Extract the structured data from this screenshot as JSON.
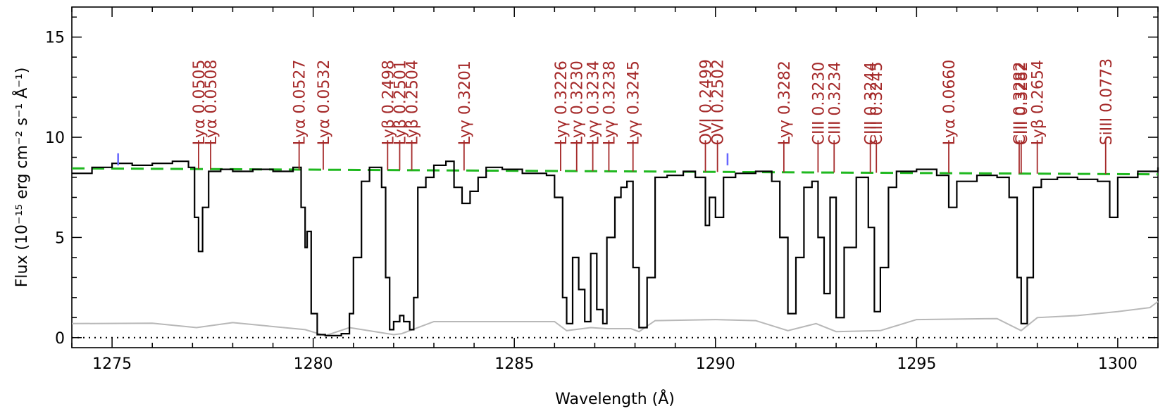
{
  "chart_data": {
    "type": "line",
    "xlabel": "Wavelength (Å)",
    "ylabel": "Flux (10⁻¹⁵ erg cm⁻² s⁻¹ Å⁻¹)",
    "xlim": [
      1274,
      1301
    ],
    "ylim": [
      -0.5,
      16.5
    ],
    "x_ticks": [
      1275,
      1280,
      1285,
      1290,
      1295,
      1300
    ],
    "y_ticks": [
      0,
      5,
      10,
      15
    ],
    "grid": false,
    "colors": {
      "flux": "#000000",
      "error": "#b8b8b8",
      "continuum": "#1fb81f",
      "labels": "#a52a2a",
      "markers": "#6666ff",
      "zero": "#000000"
    },
    "series": [
      {
        "role": "flux",
        "x": [
          1274.0,
          1274.5,
          1275.0,
          1275.5,
          1276.0,
          1276.5,
          1276.9,
          1277.05,
          1277.15,
          1277.25,
          1277.4,
          1277.7,
          1278.0,
          1278.5,
          1279.0,
          1279.5,
          1279.7,
          1279.8,
          1279.85,
          1279.95,
          1280.1,
          1280.3,
          1280.5,
          1280.7,
          1280.9,
          1281.0,
          1281.2,
          1281.4,
          1281.7,
          1281.8,
          1281.9,
          1282.0,
          1282.15,
          1282.25,
          1282.4,
          1282.5,
          1282.6,
          1282.8,
          1283.0,
          1283.3,
          1283.5,
          1283.7,
          1283.9,
          1284.1,
          1284.3,
          1284.7,
          1285.2,
          1285.8,
          1286.0,
          1286.2,
          1286.3,
          1286.45,
          1286.6,
          1286.75,
          1286.9,
          1287.05,
          1287.2,
          1287.3,
          1287.5,
          1287.65,
          1287.8,
          1287.95,
          1288.1,
          1288.3,
          1288.5,
          1288.8,
          1289.2,
          1289.5,
          1289.75,
          1289.85,
          1290.0,
          1290.2,
          1290.5,
          1291.0,
          1291.4,
          1291.6,
          1291.8,
          1292.0,
          1292.2,
          1292.4,
          1292.55,
          1292.7,
          1292.85,
          1293.0,
          1293.2,
          1293.5,
          1293.8,
          1293.95,
          1294.1,
          1294.3,
          1294.5,
          1295.0,
          1295.5,
          1295.8,
          1296.0,
          1296.5,
          1297.0,
          1297.3,
          1297.5,
          1297.6,
          1297.75,
          1297.9,
          1298.1,
          1298.5,
          1299.0,
          1299.5,
          1299.8,
          1300.0,
          1300.5,
          1301.0
        ],
        "y": [
          8.2,
          8.5,
          8.7,
          8.6,
          8.7,
          8.8,
          8.5,
          6.0,
          4.3,
          6.5,
          8.3,
          8.4,
          8.3,
          8.4,
          8.3,
          8.5,
          6.5,
          4.5,
          5.3,
          1.2,
          0.15,
          0.1,
          0.1,
          0.2,
          1.2,
          4.0,
          7.8,
          8.5,
          7.5,
          3.0,
          0.4,
          0.8,
          1.1,
          0.8,
          0.4,
          2.0,
          7.5,
          8.0,
          8.6,
          8.8,
          7.5,
          6.7,
          7.3,
          8.0,
          8.5,
          8.4,
          8.2,
          8.1,
          7.0,
          2.0,
          0.7,
          4.0,
          2.4,
          0.8,
          4.2,
          1.4,
          0.7,
          5.0,
          7.0,
          7.5,
          7.8,
          3.5,
          0.5,
          3.0,
          8.0,
          8.1,
          8.3,
          8.0,
          5.6,
          7.0,
          6.0,
          8.0,
          8.2,
          8.3,
          7.8,
          5.0,
          1.2,
          4.0,
          7.5,
          7.8,
          5.0,
          2.2,
          7.0,
          1.0,
          4.5,
          8.0,
          5.5,
          1.3,
          3.5,
          7.5,
          8.3,
          8.4,
          8.1,
          6.5,
          7.8,
          8.1,
          8.0,
          7.0,
          3.0,
          0.7,
          3.0,
          7.5,
          7.9,
          8.0,
          7.9,
          7.8,
          6.0,
          8.0,
          8.3,
          8.5
        ]
      },
      {
        "role": "error",
        "x": [
          1274.0,
          1276.0,
          1277.1,
          1278.0,
          1279.8,
          1280.3,
          1280.9,
          1282.0,
          1282.2,
          1283.0,
          1286.0,
          1286.3,
          1286.9,
          1287.3,
          1287.9,
          1288.1,
          1288.5,
          1290.0,
          1291.0,
          1291.8,
          1292.5,
          1293.0,
          1294.1,
          1295.0,
          1297.0,
          1297.6,
          1298.0,
          1299.0,
          1300.0,
          1300.8,
          1301.0
        ],
        "y": [
          0.7,
          0.72,
          0.5,
          0.75,
          0.4,
          0.1,
          0.5,
          0.15,
          0.2,
          0.8,
          0.8,
          0.35,
          0.5,
          0.45,
          0.45,
          0.3,
          0.85,
          0.9,
          0.85,
          0.35,
          0.7,
          0.3,
          0.35,
          0.9,
          0.95,
          0.35,
          1.0,
          1.1,
          1.3,
          1.5,
          1.8
        ]
      },
      {
        "role": "continuum",
        "x": [
          1274.0,
          1301.0
        ],
        "y": [
          8.45,
          8.15
        ]
      }
    ],
    "line_ids": [
      {
        "x": 1277.15,
        "label": "Lyα 0.0505"
      },
      {
        "x": 1277.45,
        "label": "Lyα 0.0508"
      },
      {
        "x": 1279.65,
        "label": "Lyα 0.0527"
      },
      {
        "x": 1280.25,
        "label": "Lyα 0.0532"
      },
      {
        "x": 1281.85,
        "label": "Lyβ 0.2498"
      },
      {
        "x": 1282.15,
        "label": "Lyβ 0.2501"
      },
      {
        "x": 1282.45,
        "label": "Lyβ 0.2504"
      },
      {
        "x": 1283.75,
        "label": "Lyγ 0.3201"
      },
      {
        "x": 1286.15,
        "label": "Lyγ 0.3226"
      },
      {
        "x": 1286.55,
        "label": "Lyγ 0.3230"
      },
      {
        "x": 1286.95,
        "label": "Lyγ 0.3234"
      },
      {
        "x": 1287.35,
        "label": "Lyγ 0.3238"
      },
      {
        "x": 1287.95,
        "label": "Lyγ 0.3245"
      },
      {
        "x": 1289.75,
        "label": "OVI 0.2499"
      },
      {
        "x": 1290.05,
        "label": "OVI 0.2502"
      },
      {
        "x": 1291.7,
        "label": "Lyγ 0.3282"
      },
      {
        "x": 1292.55,
        "label": "CIII 0.3230"
      },
      {
        "x": 1292.95,
        "label": "CIII 0.3234"
      },
      {
        "x": 1293.85,
        "label": "CIII 0.3244"
      },
      {
        "x": 1294.0,
        "label": "CIII 0.3245"
      },
      {
        "x": 1295.8,
        "label": "Lyα 0.0660"
      },
      {
        "x": 1297.55,
        "label": "CIII 0.3282"
      },
      {
        "x": 1297.6,
        "label": "CIII 0.3282"
      },
      {
        "x": 1298.0,
        "label": "Lyβ 0.2654"
      },
      {
        "x": 1299.7,
        "label": "SiIII 0.0773"
      }
    ],
    "markers": [
      {
        "x": 1275.15
      },
      {
        "x": 1290.3
      }
    ]
  }
}
